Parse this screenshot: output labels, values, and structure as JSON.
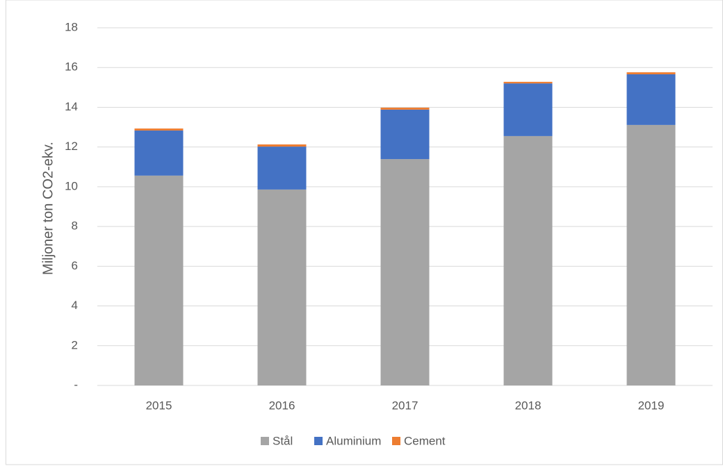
{
  "chart_data": {
    "type": "stacked-bar",
    "y_label": "Miljoner ton CO2-ekv.",
    "categories": [
      "2015",
      "2016",
      "2017",
      "2018",
      "2019"
    ],
    "series": [
      {
        "name": "Stål",
        "color": "#a5a5a5",
        "values": [
          10.56,
          9.86,
          11.39,
          12.55,
          13.11
        ]
      },
      {
        "name": "Aluminium",
        "color": "#4472c4",
        "values": [
          2.27,
          2.16,
          2.49,
          2.65,
          2.55
        ]
      },
      {
        "name": "Cement",
        "color": "#ed7d31",
        "values": [
          0.1,
          0.11,
          0.1,
          0.08,
          0.1
        ]
      }
    ],
    "ylim": [
      0,
      18
    ],
    "yticks": [
      {
        "value": 0,
        "label": "-"
      },
      2,
      4,
      6,
      8,
      10,
      12,
      14,
      16,
      18
    ],
    "grid": true,
    "legend": "bottom"
  }
}
